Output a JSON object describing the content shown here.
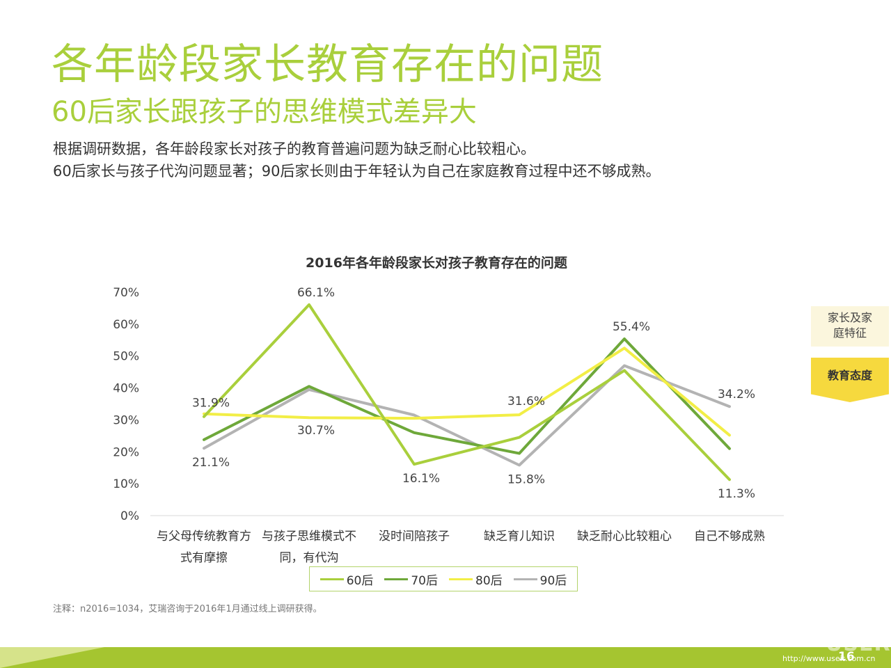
{
  "header": {
    "title": "各年龄段家长教育存在的问题",
    "subtitle": "60后家长跟孩子的思维模式差异大",
    "description": [
      "根据调研数据，各年龄段家长对孩子的教育普遍问题为缺乏耐心比较粗心。",
      "60后家长与孩子代沟问题显著；90后家长则由于年轻认为自己在家庭教育过程中还不够成熟。"
    ]
  },
  "side_tabs": {
    "family_lines": [
      "家长及家",
      "庭特征"
    ],
    "attitude": "教育态度"
  },
  "chart_data": {
    "type": "line",
    "title": "2016年各年龄段家长对孩子教育存在的问题",
    "categories": [
      [
        "与父母传统教育方",
        "式有摩擦"
      ],
      [
        "与孩子思维模式不",
        "同，有代沟"
      ],
      [
        "没时间陪孩子"
      ],
      [
        "缺乏育儿知识"
      ],
      [
        "缺乏耐心比较粗心"
      ],
      [
        "自己不够成熟"
      ]
    ],
    "ylim": [
      0,
      70
    ],
    "yticks": [
      "0%",
      "10%",
      "20%",
      "30%",
      "40%",
      "50%",
      "60%",
      "70%"
    ],
    "series": [
      {
        "name": "60后",
        "color": "#a9cf3c",
        "values": [
          31.0,
          66.1,
          16.1,
          24.5,
          45.5,
          11.3
        ]
      },
      {
        "name": "70后",
        "color": "#6ea83a",
        "values": [
          23.8,
          40.5,
          26.0,
          19.5,
          55.4,
          21.0
        ]
      },
      {
        "name": "80后",
        "color": "#f2ee46",
        "values": [
          31.9,
          30.7,
          30.5,
          31.6,
          52.5,
          25.2
        ]
      },
      {
        "name": "90后",
        "color": "#b3b3b3",
        "values": [
          21.1,
          39.5,
          31.5,
          15.8,
          47.0,
          34.2
        ]
      }
    ],
    "data_labels": [
      {
        "category": 0,
        "value": 31.9,
        "text": "31.9%"
      },
      {
        "category": 0,
        "value": 21.1,
        "text": "21.1%"
      },
      {
        "category": 1,
        "value": 66.1,
        "text": "66.1%"
      },
      {
        "category": 1,
        "value": 30.7,
        "text": "30.7%"
      },
      {
        "category": 2,
        "value": 16.1,
        "text": "16.1%"
      },
      {
        "category": 3,
        "value": 31.6,
        "text": "31.6%"
      },
      {
        "category": 3,
        "value": 15.8,
        "text": "15.8%"
      },
      {
        "category": 4,
        "value": 55.4,
        "text": "55.4%"
      },
      {
        "category": 5,
        "value": 34.2,
        "text": "34.2%"
      },
      {
        "category": 5,
        "value": 11.3,
        "text": "11.3%"
      }
    ],
    "grid": false,
    "legend_position": "bottom"
  },
  "note": "注释：n2016=1034，艾瑞咨询于2016年1月通过线上调研获得。",
  "footer": {
    "watermark": "USER",
    "page_number": "16",
    "url": "http://www.useit.com.cn"
  }
}
